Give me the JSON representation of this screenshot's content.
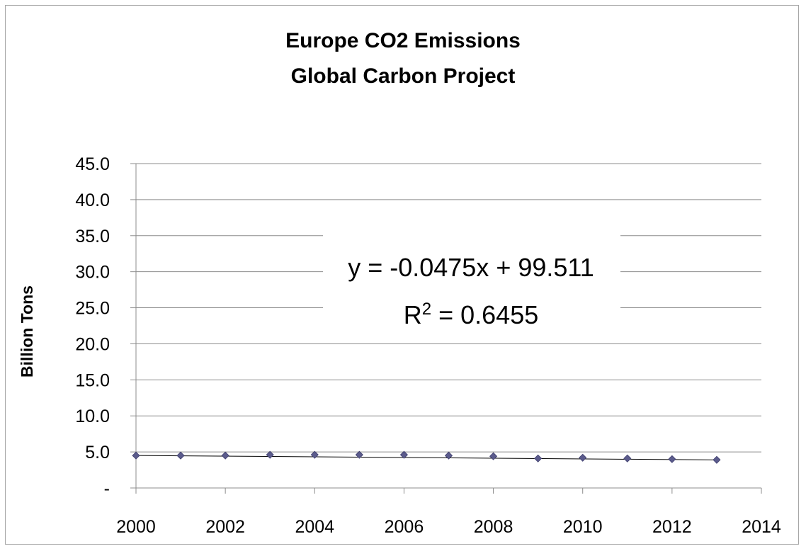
{
  "chart_data": {
    "type": "scatter",
    "title": [
      "Europe CO2 Emissions",
      "Global Carbon Project"
    ],
    "xlabel": "",
    "ylabel": "Billion Tons",
    "xlim": [
      2000,
      2014
    ],
    "ylim": [
      0,
      45
    ],
    "x_ticks": [
      2000,
      2002,
      2004,
      2006,
      2008,
      2010,
      2012,
      2014
    ],
    "x_tick_labels": [
      "2000",
      "2002",
      "2004",
      "2006",
      "2008",
      "2010",
      "2012",
      "2014"
    ],
    "y_ticks": [
      0,
      5,
      10,
      15,
      20,
      25,
      30,
      35,
      40,
      45
    ],
    "y_tick_labels": [
      "-",
      "5.0",
      "10.0",
      "15.0",
      "20.0",
      "25.0",
      "30.0",
      "35.0",
      "40.0",
      "45.0"
    ],
    "grid": true,
    "legend": false,
    "series": [
      {
        "name": "Europe CO2 Emissions",
        "color": "#5b5b8c",
        "marker": "diamond",
        "x": [
          2000,
          2001,
          2002,
          2003,
          2004,
          2005,
          2006,
          2007,
          2008,
          2009,
          2010,
          2011,
          2012,
          2013
        ],
        "y": [
          4.5,
          4.5,
          4.5,
          4.6,
          4.6,
          4.6,
          4.6,
          4.5,
          4.4,
          4.1,
          4.2,
          4.1,
          4.0,
          3.9
        ]
      }
    ],
    "trendline": {
      "type": "linear",
      "slope": -0.0475,
      "intercept": 99.511,
      "color": "#000000",
      "equation_label": "y = -0.0475x + 99.511",
      "r2_prefix": "R",
      "r2_superscript": "2",
      "r2_suffix": " = 0.6455"
    }
  }
}
